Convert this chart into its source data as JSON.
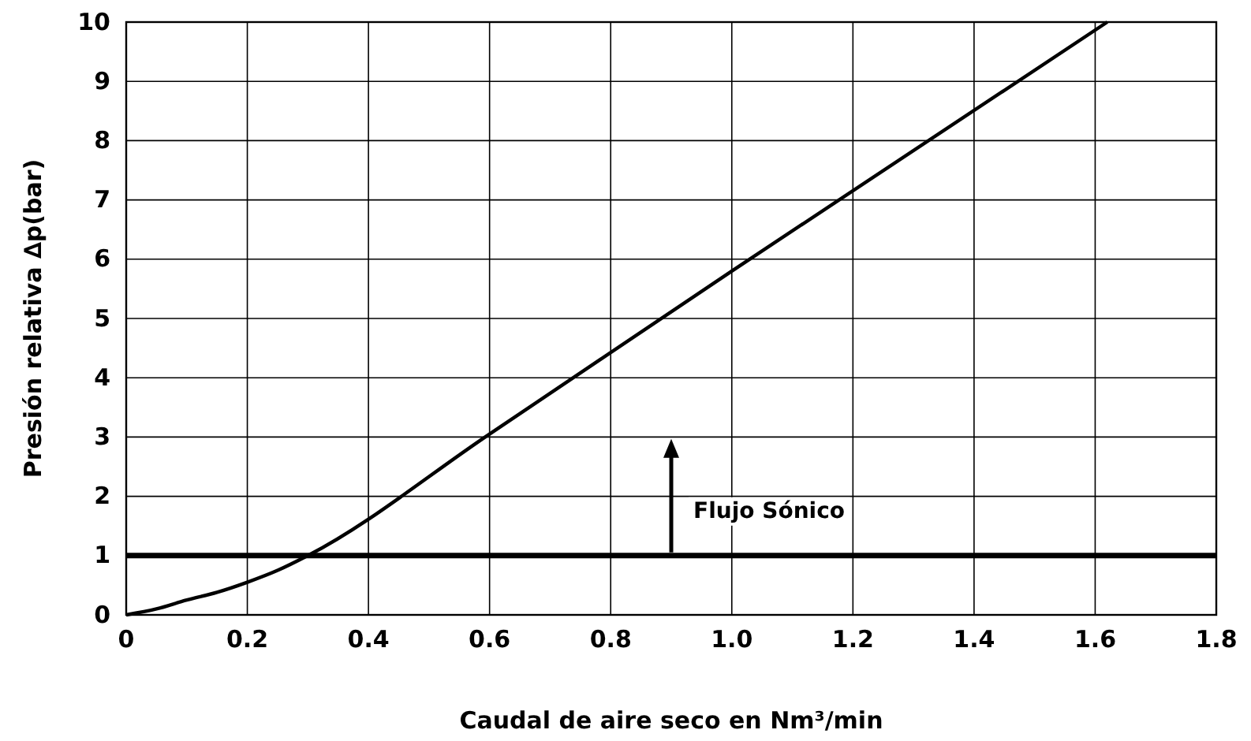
{
  "chart_data": {
    "type": "line",
    "xlabel": "Caudal de aire seco en Nm³/min",
    "ylabel": "Presión relativa ∆p(bar)",
    "x": [
      0,
      0.05,
      0.1,
      0.15,
      0.2,
      0.25,
      0.3,
      0.6,
      1.0,
      1.62
    ],
    "series": [
      {
        "color": "#000000",
        "values": [
          0,
          0.1,
          0.25,
          0.38,
          0.55,
          0.75,
          1,
          3.05,
          5.8,
          10
        ]
      }
    ],
    "xlim": [
      0,
      1.8
    ],
    "xticks": [
      0,
      0.2,
      0.4,
      0.6,
      0.8,
      {
        "value": 1,
        "label": "1.0"
      },
      1.2,
      1.4,
      1.6,
      1.8
    ],
    "ylim": [
      0,
      10
    ],
    "yticks": [
      0,
      1,
      2,
      3,
      4,
      5,
      6,
      7,
      8,
      9,
      10
    ],
    "grid": true,
    "marker": "none",
    "line_style": "solid",
    "ref_lines": [
      {
        "axis": "y",
        "value": 1,
        "color": "#000000"
      }
    ],
    "annotations": [
      {
        "text": "Flujo Sónico",
        "x": 0.9,
        "y": 1
      }
    ]
  }
}
